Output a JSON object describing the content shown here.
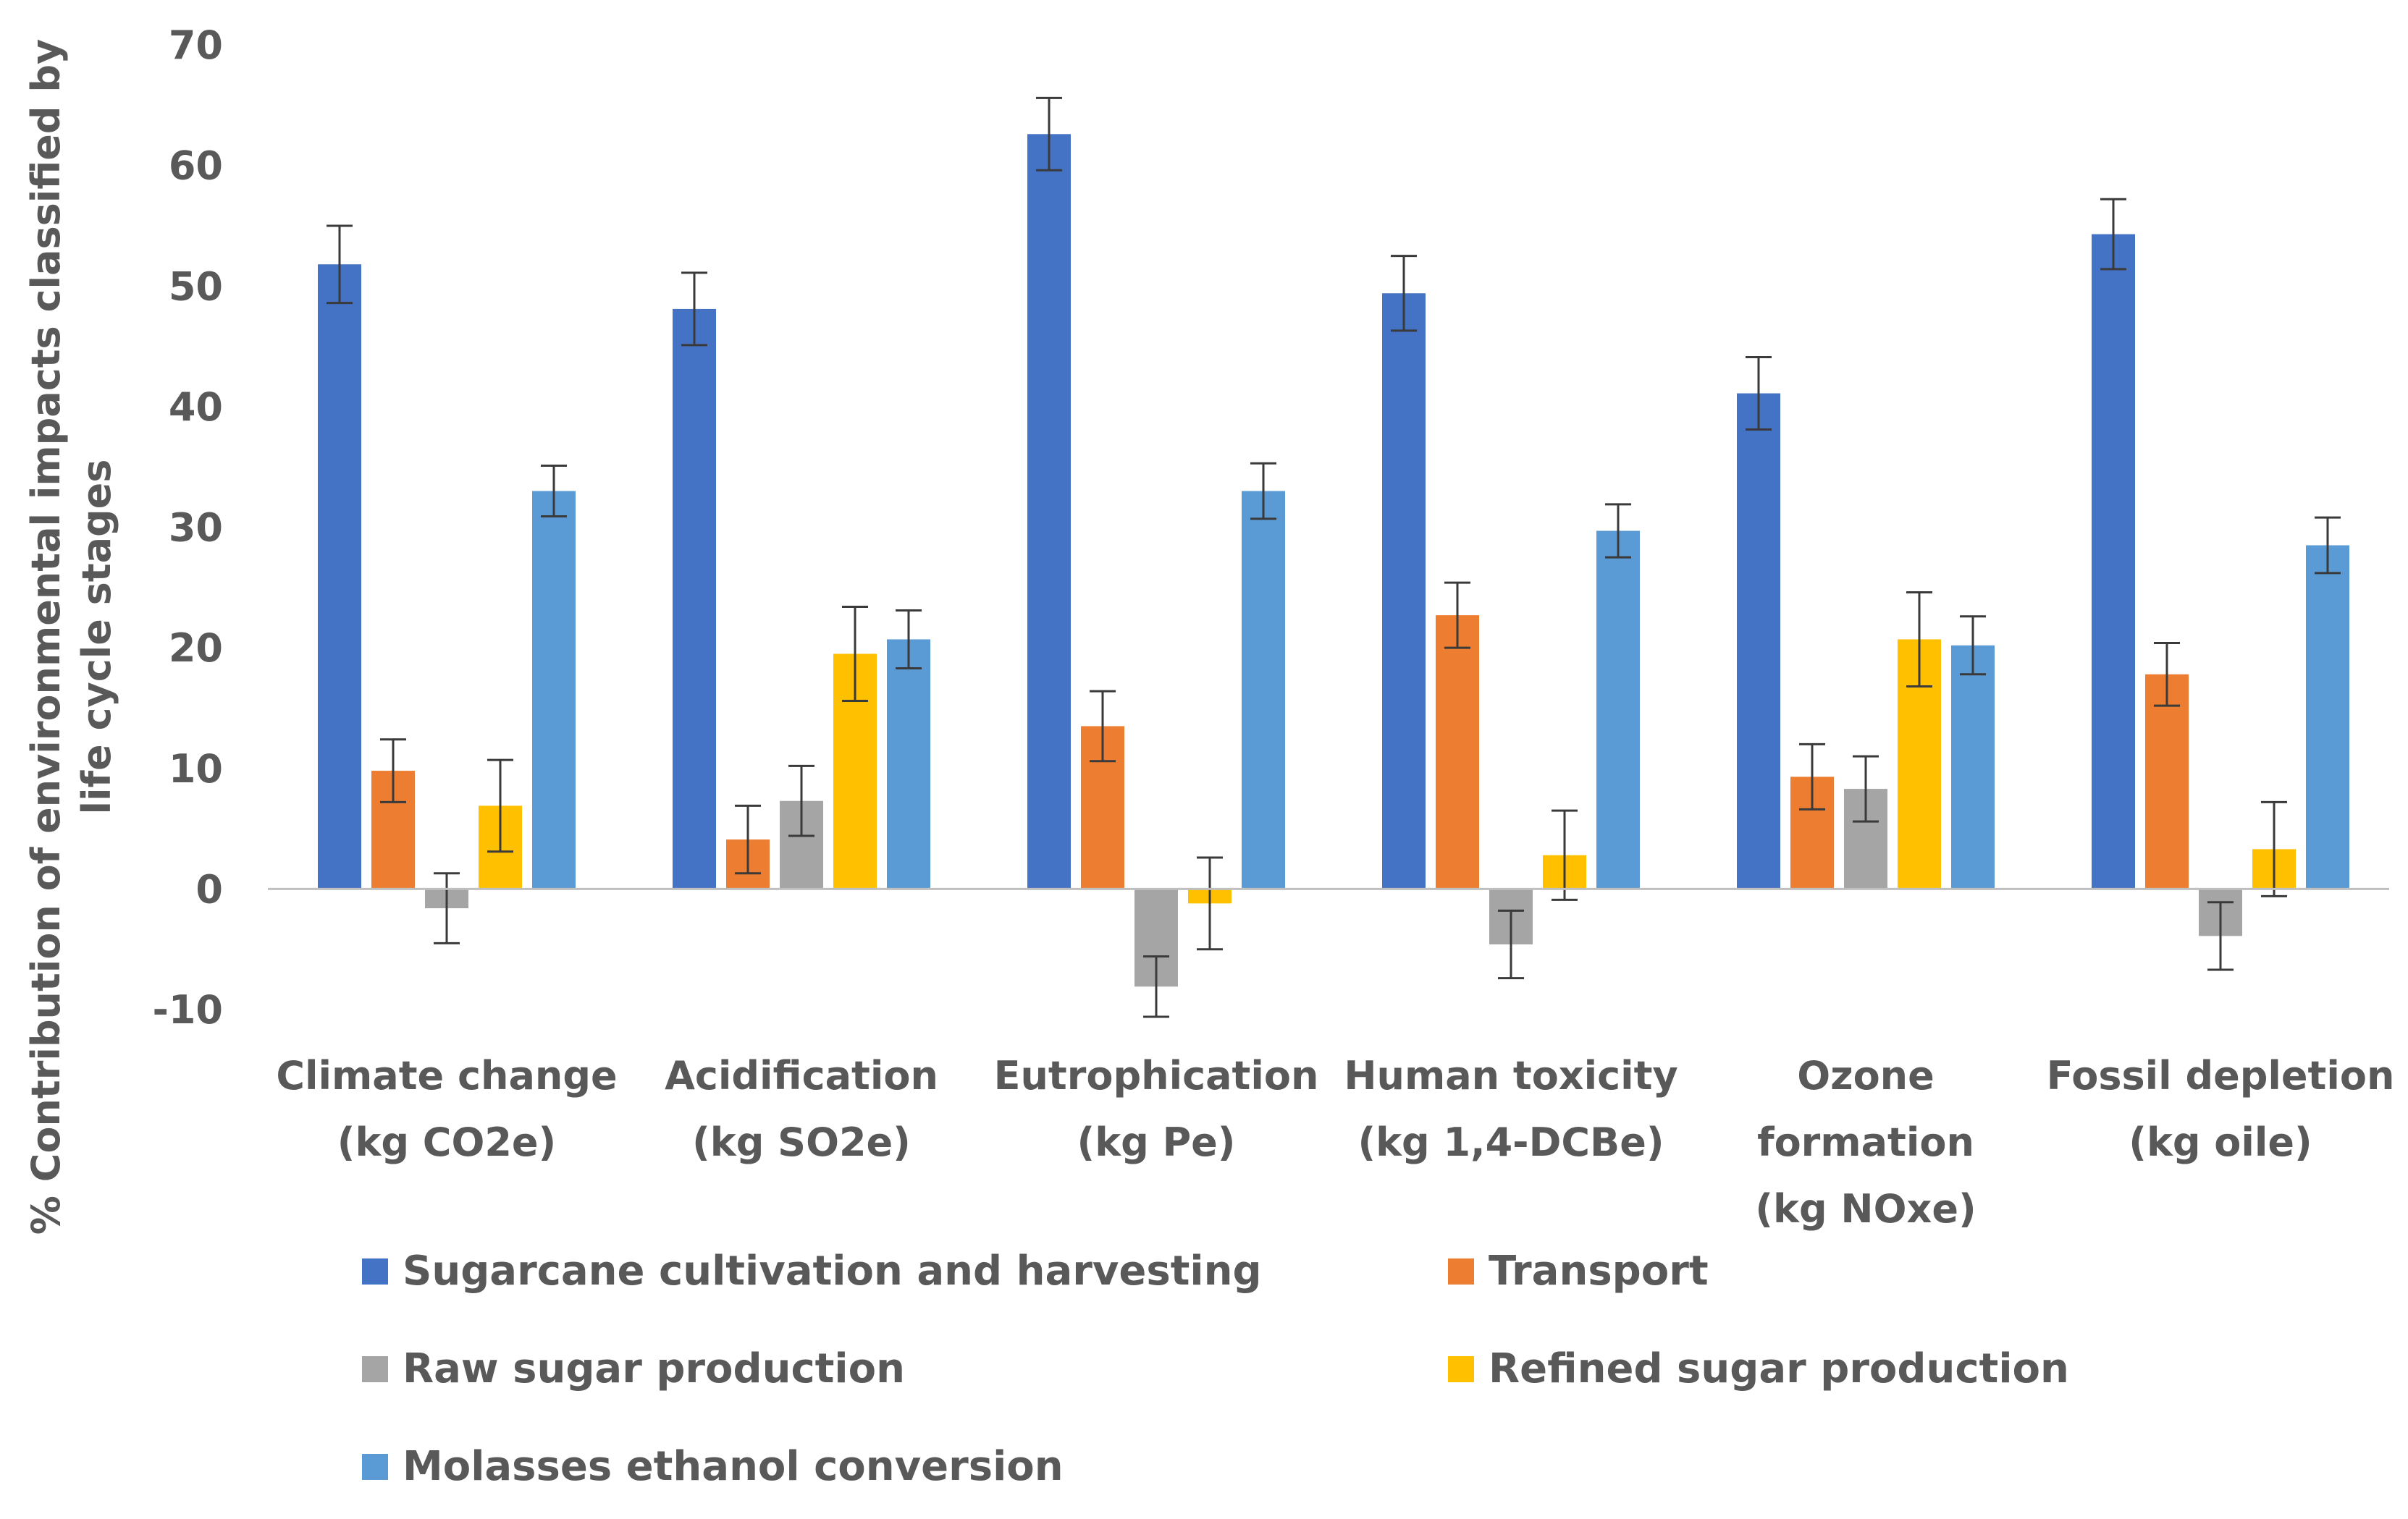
{
  "chart_data": {
    "type": "bar",
    "title": "",
    "xlabel": "",
    "ylabel": [
      "% Contribution of environmental impacts classified by",
      "life cycle stages"
    ],
    "ylim": [
      -10,
      70
    ],
    "yticks": [
      -10,
      0,
      10,
      20,
      30,
      40,
      50,
      60,
      70
    ],
    "grid": false,
    "legend_position": "bottom",
    "categories": [
      [
        "Climate change",
        "(kg CO2e)"
      ],
      [
        "Acidification",
        "(kg SO2e)"
      ],
      [
        "Eutrophication",
        "(kg Pe)"
      ],
      [
        "Human toxicity",
        "(kg 1,4-DCBe)"
      ],
      [
        "Ozone",
        "formation",
        "(kg NOxe)"
      ],
      [
        "Fossil depletion",
        "(kg oile)"
      ]
    ],
    "series": [
      {
        "name": "Sugarcane cultivation and harvesting",
        "color": "#4472c4",
        "values": [
          51.8,
          48.1,
          62.6,
          49.4,
          41.1,
          54.3
        ],
        "errors": [
          3.2,
          3.0,
          3.0,
          3.1,
          3.0,
          2.9
        ]
      },
      {
        "name": "Transport",
        "color": "#ed7d31",
        "values": [
          9.8,
          4.1,
          13.5,
          22.7,
          9.3,
          17.8
        ],
        "errors": [
          2.6,
          2.8,
          2.9,
          2.7,
          2.7,
          2.6
        ]
      },
      {
        "name": "Raw sugar production",
        "color": "#a5a5a5",
        "values": [
          -1.6,
          7.3,
          -8.1,
          -4.6,
          8.3,
          -3.9
        ],
        "errors": [
          2.9,
          2.9,
          2.5,
          2.8,
          2.7,
          2.8
        ]
      },
      {
        "name": "Refined sugar production",
        "color": "#ffc000",
        "values": [
          6.9,
          19.5,
          -1.2,
          2.8,
          20.7,
          3.3
        ],
        "errors": [
          3.8,
          3.9,
          3.8,
          3.7,
          3.9,
          3.9
        ]
      },
      {
        "name": "Molasses ethanol conversion",
        "color": "#5b9bd5",
        "values": [
          33.0,
          20.7,
          33.0,
          29.7,
          20.2,
          28.5
        ],
        "errors": [
          2.1,
          2.4,
          2.3,
          2.2,
          2.4,
          2.3
        ]
      }
    ]
  }
}
